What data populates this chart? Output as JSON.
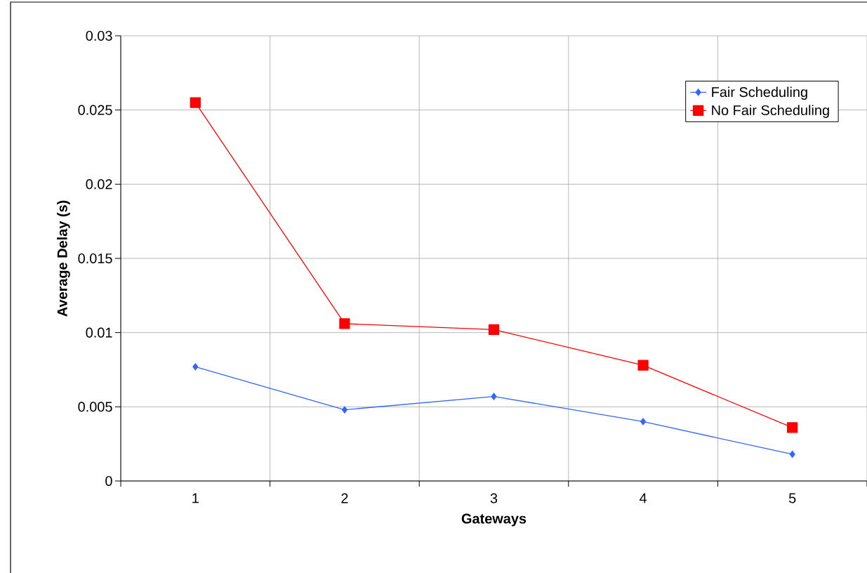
{
  "chart_data": {
    "type": "line",
    "xlabel": "Gateways",
    "ylabel": "Average Delay (s)",
    "categories": [
      "1",
      "2",
      "3",
      "4",
      "5"
    ],
    "series": [
      {
        "name": "Fair Scheduling",
        "color": "#3366ff",
        "marker": "diamond",
        "values": [
          0.0077,
          0.0048,
          0.0057,
          0.004,
          0.0018
        ]
      },
      {
        "name": "No Fair Scheduling",
        "color": "#ff0000",
        "marker": "square",
        "values": [
          0.0255,
          0.0106,
          0.0102,
          0.0078,
          0.0036
        ]
      }
    ],
    "ylim": [
      0,
      0.03
    ],
    "yticks": [
      0,
      0.005,
      0.01,
      0.015,
      0.02,
      0.025,
      0.03
    ],
    "grid": true,
    "legend": "top right",
    "line_style": "solid"
  }
}
